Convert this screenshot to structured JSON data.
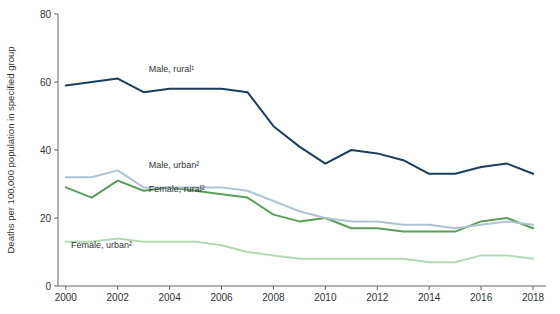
{
  "chart_data": {
    "type": "line",
    "y_label": "Deaths per 100,000 population in specified group",
    "x": [
      2000,
      2001,
      2002,
      2003,
      2004,
      2005,
      2006,
      2007,
      2008,
      2009,
      2010,
      2011,
      2012,
      2013,
      2014,
      2015,
      2016,
      2017,
      2018
    ],
    "series": [
      {
        "color": "#1b3d5e",
        "values": [
          59,
          60,
          61,
          57,
          58,
          58,
          58,
          57,
          47,
          41,
          36,
          40,
          39,
          37,
          33,
          33,
          35,
          36,
          33
        ]
      },
      {
        "color": "#afc4d4",
        "values": [
          32,
          32,
          34,
          29,
          29,
          29,
          29,
          28,
          25,
          22,
          20,
          19,
          19,
          18,
          18,
          17,
          18,
          19,
          18
        ]
      },
      {
        "color": "#5b9e5b",
        "values": [
          29,
          26,
          31,
          28,
          29,
          28,
          27,
          26,
          21,
          19,
          20,
          17,
          17,
          16,
          16,
          16,
          19,
          20,
          17
        ]
      },
      {
        "color": "#b5d9b5",
        "values": [
          13,
          13,
          14,
          13,
          13,
          13,
          12,
          10,
          9,
          8,
          8,
          8,
          8,
          8,
          7,
          7,
          9,
          9,
          8
        ]
      }
    ],
    "annotations": [
      {
        "text": "Male, rural¹",
        "x": 2003.2,
        "y": 62.5
      },
      {
        "text": "Male, urban²",
        "x": 2003.2,
        "y": 34.0
      },
      {
        "text": "Female, rural²",
        "x": 2003.2,
        "y": 27.0
      },
      {
        "text": "Female, urban²",
        "x": 2000.2,
        "y": 10.5
      }
    ],
    "xlim": [
      1999.7,
      2018.5
    ],
    "xticks": [
      2000,
      2002,
      2004,
      2006,
      2008,
      2010,
      2012,
      2014,
      2016,
      2018
    ],
    "ylim": [
      0,
      80
    ],
    "yticks": [
      0,
      20,
      40,
      60,
      80
    ],
    "grid": false
  }
}
